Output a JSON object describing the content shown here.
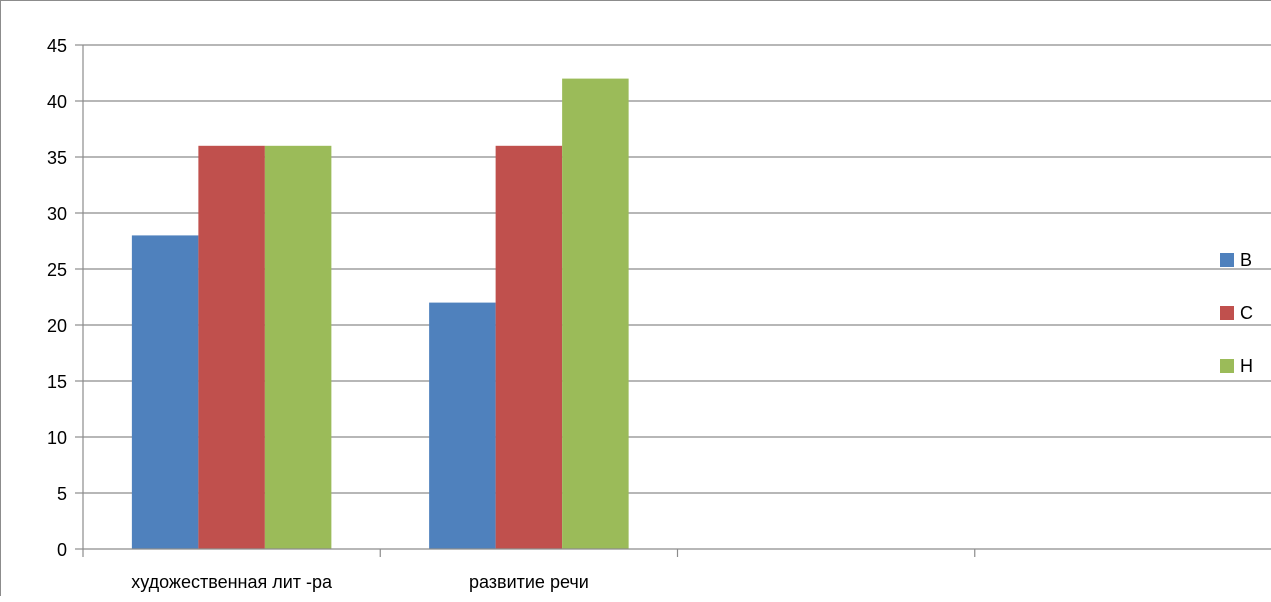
{
  "chart_data": {
    "type": "bar",
    "title": "",
    "xlabel": "",
    "ylabel": "",
    "categories": [
      "художественная лит -ра",
      "развитие речи",
      "",
      ""
    ],
    "series": [
      {
        "name": "В",
        "color": "#4f81bd",
        "values": [
          28,
          22,
          null,
          null
        ]
      },
      {
        "name": "С",
        "color": "#c0504d",
        "values": [
          36,
          36,
          null,
          null
        ]
      },
      {
        "name": "Н",
        "color": "#9bbb59",
        "values": [
          36,
          42,
          null,
          null
        ]
      }
    ],
    "ylim": [
      0,
      45
    ],
    "yticks": [
      0,
      5,
      10,
      15,
      20,
      25,
      30,
      35,
      40,
      45
    ],
    "grid": true,
    "legend_position": "right",
    "gridline_color": "#8c8c8c",
    "axis_color": "#8c8c8c"
  }
}
